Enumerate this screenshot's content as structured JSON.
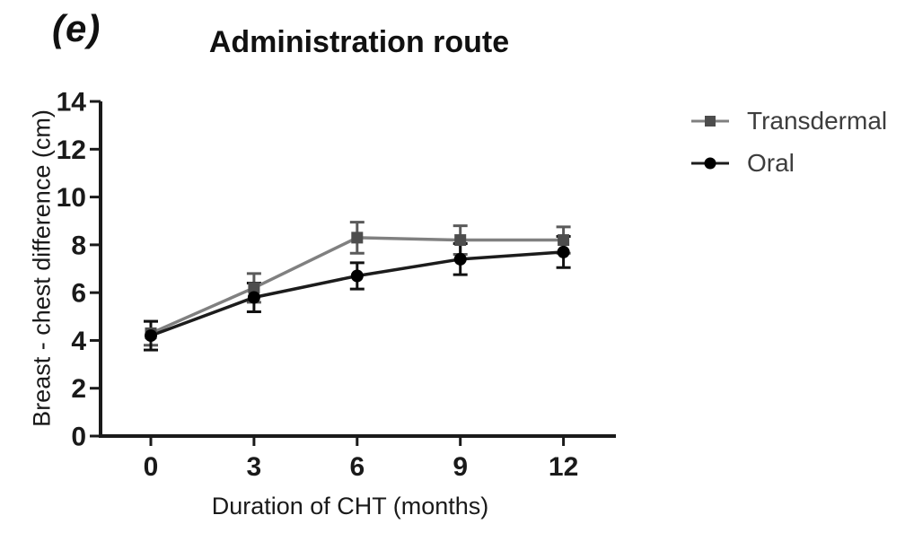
{
  "panel_label": "(e)",
  "chart_data": {
    "type": "line",
    "title": "Administration route",
    "xlabel": "Duration of CHT (months)",
    "ylabel": "Breast - chest difference (cm)",
    "x": [
      0,
      3,
      6,
      9,
      12
    ],
    "xticks": [
      0,
      3,
      6,
      9,
      12
    ],
    "yticks": [
      0,
      2,
      4,
      6,
      8,
      10,
      12,
      14
    ],
    "xlim": [
      -1.5,
      13.5
    ],
    "ylim": [
      0,
      14
    ],
    "grid": false,
    "error_bars": "sem, vertical with caps",
    "legend_position": "outside-right",
    "axis_color": "#1a1a1a",
    "series": [
      {
        "name": "Transdermal",
        "marker": "square",
        "line_color": "#808080",
        "marker_color": "#4d4d4d",
        "error_color": "#5a5a5a",
        "values": [
          4.3,
          6.2,
          8.3,
          8.2,
          8.2
        ],
        "errors": [
          0.5,
          0.6,
          0.65,
          0.6,
          0.55
        ]
      },
      {
        "name": "Oral",
        "marker": "circle",
        "line_color": "#1c1c1c",
        "marker_color": "#000000",
        "error_color": "#111111",
        "values": [
          4.2,
          5.8,
          6.7,
          7.4,
          7.7
        ],
        "errors": [
          0.6,
          0.6,
          0.55,
          0.65,
          0.65
        ]
      }
    ]
  }
}
